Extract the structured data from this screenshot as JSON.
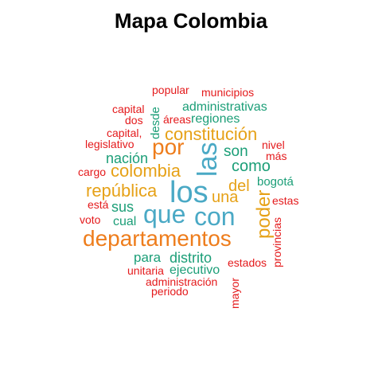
{
  "title": "Mapa Colombia",
  "palette": {
    "red": "#e41a1c",
    "teal": "#1b9e77",
    "gold": "#e6a117",
    "orange": "#ee7d1c",
    "blue": "#4aa9c5"
  },
  "words": [
    {
      "text": "popular",
      "color": "red"
    },
    {
      "text": "municipios",
      "color": "red"
    },
    {
      "text": "capital",
      "color": "red"
    },
    {
      "text": "administrativas",
      "color": "teal"
    },
    {
      "text": "dos",
      "color": "red"
    },
    {
      "text": "áreas",
      "color": "red"
    },
    {
      "text": "regiones",
      "color": "teal"
    },
    {
      "text": "desde",
      "color": "teal"
    },
    {
      "text": "capital,",
      "color": "red"
    },
    {
      "text": "constitución",
      "color": "gold"
    },
    {
      "text": "legislativo",
      "color": "red"
    },
    {
      "text": "por",
      "color": "orange"
    },
    {
      "text": "las",
      "color": "blue"
    },
    {
      "text": "son",
      "color": "teal"
    },
    {
      "text": "nivel",
      "color": "red"
    },
    {
      "text": "más",
      "color": "red"
    },
    {
      "text": "nación",
      "color": "teal"
    },
    {
      "text": "como",
      "color": "teal"
    },
    {
      "text": "cargo",
      "color": "red"
    },
    {
      "text": "colombia",
      "color": "gold"
    },
    {
      "text": "del",
      "color": "gold"
    },
    {
      "text": "bogotá",
      "color": "teal"
    },
    {
      "text": "república",
      "color": "gold"
    },
    {
      "text": "los",
      "color": "blue"
    },
    {
      "text": "una",
      "color": "gold"
    },
    {
      "text": "estas",
      "color": "red"
    },
    {
      "text": "está",
      "color": "red"
    },
    {
      "text": "sus",
      "color": "teal"
    },
    {
      "text": "poder",
      "color": "gold"
    },
    {
      "text": "que",
      "color": "blue"
    },
    {
      "text": "con",
      "color": "blue"
    },
    {
      "text": "voto",
      "color": "red"
    },
    {
      "text": "cual",
      "color": "teal"
    },
    {
      "text": "provincias",
      "color": "red"
    },
    {
      "text": "departamentos",
      "color": "orange"
    },
    {
      "text": "para",
      "color": "teal"
    },
    {
      "text": "distrito",
      "color": "teal"
    },
    {
      "text": "estados",
      "color": "red"
    },
    {
      "text": "unitaria",
      "color": "red"
    },
    {
      "text": "ejecutivo",
      "color": "teal"
    },
    {
      "text": "administración",
      "color": "red"
    },
    {
      "text": "mayor",
      "color": "red"
    },
    {
      "text": "periodo",
      "color": "red"
    }
  ]
}
